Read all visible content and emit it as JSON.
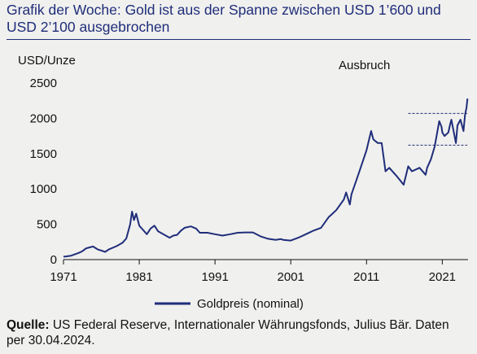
{
  "header": {
    "title": "Grafik der Woche: Gold ist aus der Spanne zwischen USD 1’600 und USD 2’100 ausgebrochen"
  },
  "footer": {
    "source_label": "Quelle:",
    "source_text": " US Federal Reserve, Internationaler Währungsfonds, Julius Bär. Daten per 30.04.2024."
  },
  "colors": {
    "line": "#1f2d7a",
    "axis": "#111111",
    "text": "#111111"
  },
  "chart_data": {
    "type": "line",
    "title": "",
    "ylabel": "USD/Unze",
    "xlabel": "",
    "annotation": "Ausbruch",
    "xlim": [
      1971,
      2024.4
    ],
    "ylim": [
      0,
      2500
    ],
    "xticks": [
      1971,
      1981,
      1991,
      2001,
      2011,
      2021
    ],
    "yticks": [
      0,
      500,
      1000,
      1500,
      2000,
      2500
    ],
    "legend": "bottom-center",
    "reference_lines": [
      {
        "y": 2070,
        "x_start": 2016.5,
        "x_end": 2024.3,
        "style": "dashed"
      },
      {
        "y": 1620,
        "x_start": 2016.5,
        "x_end": 2024.3,
        "style": "dashed"
      }
    ],
    "series": [
      {
        "name": "Goldpreis (nominal)",
        "x": [
          1971,
          1972,
          1973,
          1973.5,
          1974,
          1974.9,
          1975.5,
          1976.5,
          1977,
          1978,
          1978.8,
          1979.3,
          1979.8,
          1980.05,
          1980.3,
          1980.6,
          1981,
          1981.5,
          1982,
          1982.5,
          1983,
          1983.5,
          1984,
          1985,
          1985.5,
          1986,
          1986.5,
          1987,
          1987.8,
          1988.5,
          1989,
          1990,
          1991,
          1992,
          1993,
          1994,
          1995,
          1996,
          1997,
          1998,
          1999,
          1999.7,
          2000,
          2001,
          2002,
          2003,
          2004,
          2005,
          2006,
          2006.5,
          2007,
          2008,
          2008.3,
          2008.8,
          2009,
          2010,
          2011,
          2011.6,
          2011.9,
          2012.5,
          2013,
          2013.5,
          2014,
          2015,
          2015.9,
          2016.5,
          2017,
          2018,
          2018.8,
          2019,
          2019.5,
          2020,
          2020.6,
          2020.9,
          2021,
          2021.3,
          2021.8,
          2022,
          2022.2,
          2022.8,
          2023,
          2023.4,
          2023.8,
          2024,
          2024.2,
          2024.33
        ],
        "y": [
          40,
          55,
          95,
          120,
          160,
          185,
          145,
          110,
          145,
          190,
          240,
          300,
          500,
          680,
          560,
          650,
          480,
          420,
          360,
          440,
          480,
          400,
          370,
          310,
          340,
          350,
          410,
          450,
          470,
          440,
          380,
          380,
          360,
          340,
          360,
          380,
          385,
          385,
          330,
          295,
          280,
          290,
          280,
          270,
          310,
          360,
          410,
          450,
          600,
          650,
          700,
          850,
          950,
          780,
          920,
          1230,
          1550,
          1820,
          1700,
          1650,
          1650,
          1250,
          1300,
          1180,
          1060,
          1320,
          1250,
          1300,
          1200,
          1300,
          1420,
          1600,
          1960,
          1880,
          1800,
          1750,
          1800,
          1900,
          1980,
          1650,
          1900,
          1980,
          1820,
          2050,
          2150,
          2280
        ]
      }
    ]
  }
}
